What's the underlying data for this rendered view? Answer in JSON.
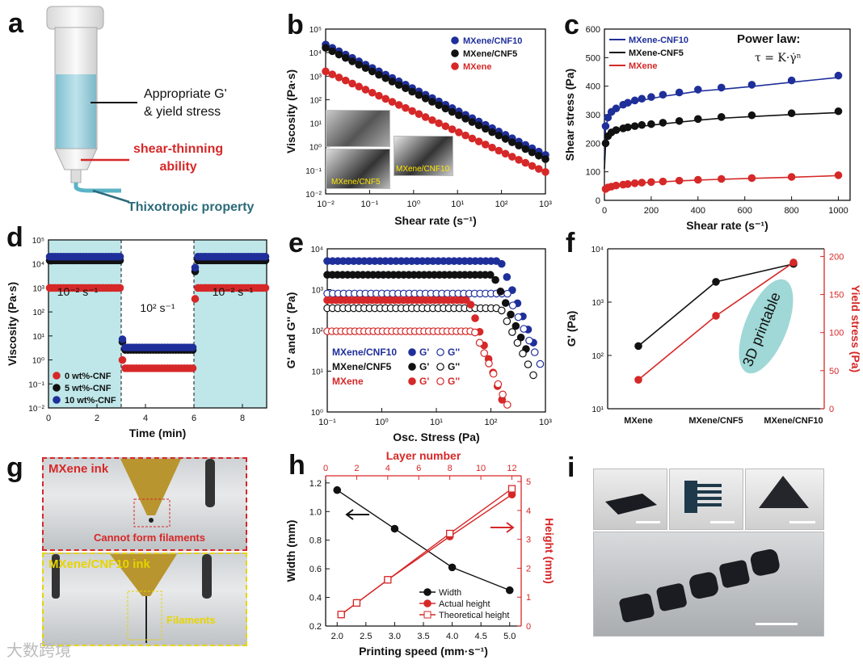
{
  "panel_labels": {
    "a": "a",
    "b": "b",
    "c": "c",
    "d": "d",
    "e": "e",
    "f": "f",
    "g": "g",
    "h": "h",
    "i": "i"
  },
  "schematic": {
    "gprime_label_line1": "Appropriate G'",
    "gprime_label_line2": "& yield stress",
    "shear_label_line1": "shear-thinning",
    "shear_label_line2": "ability",
    "thixo_label": "Thixotropic property"
  },
  "photos_g": {
    "top_title": "MXene ink",
    "top_caption": "Cannot form filaments",
    "bottom_title": "MXene/CNF10 ink",
    "bottom_caption": "Filaments"
  },
  "inset_b": {
    "label1": "MXene/CNF5",
    "label2": "MXene/CNF10"
  },
  "panel_c_annotation": {
    "title": "Power law:",
    "equation": "τ = K·γ̇ⁿ"
  },
  "panel_d_annotation": {
    "left": "10⁻² s⁻¹",
    "mid": "10² s⁻¹",
    "right": "10⁻² s⁻¹"
  },
  "panel_f_annotation": "3D printable",
  "panel_h_annotation": "",
  "watermark": "大数跨境",
  "colors": {
    "blue": "#1f2f9a",
    "black": "#111111",
    "red": "#d62828",
    "cyan": "#bfe7ea",
    "highlight": "#9fd8d6"
  },
  "chart_data": [
    {
      "id": "b",
      "type": "scatter",
      "title": "",
      "xlabel": "Shear rate (s⁻¹)",
      "ylabel": "Viscosity (Pa·s)",
      "xscale": "log",
      "yscale": "log",
      "xlim": [
        0.01,
        1000
      ],
      "ylim": [
        0.01,
        100000
      ],
      "x_ticks": [
        "10⁻²",
        "10⁻¹",
        "10⁰",
        "10¹",
        "10²",
        "10³"
      ],
      "y_ticks": [
        "10⁻²",
        "10⁻¹",
        "10⁰",
        "10¹",
        "10²",
        "10³",
        "10⁴",
        "10⁵"
      ],
      "legend": "top-right",
      "series": [
        {
          "name": "MXene/CNF10",
          "color": "blue",
          "x0": 0.01,
          "y0": 22000,
          "x1": 1000,
          "y1": 0.45
        },
        {
          "name": "MXene/CNF5",
          "color": "black",
          "x0": 0.01,
          "y0": 16000,
          "x1": 1000,
          "y1": 0.3
        },
        {
          "name": "MXene",
          "color": "red",
          "x0": 0.01,
          "y0": 1600,
          "x1": 1000,
          "y1": 0.085
        }
      ]
    },
    {
      "id": "c",
      "type": "scatter",
      "title": "",
      "xlabel": "Shear rate (s⁻¹)",
      "ylabel": "Shear stress (Pa)",
      "xlim": [
        0,
        1050
      ],
      "ylim": [
        0,
        600
      ],
      "x_ticks": [
        "0",
        "200",
        "400",
        "600",
        "800",
        "1000"
      ],
      "y_ticks": [
        "0",
        "100",
        "200",
        "300",
        "400",
        "500",
        "600"
      ],
      "legend": "top-left",
      "series": [
        {
          "name": "MXene-CNF10",
          "color": "blue",
          "x": [
            5,
            15,
            30,
            50,
            80,
            100,
            130,
            160,
            200,
            250,
            320,
            400,
            500,
            630,
            800,
            1000
          ],
          "y": [
            260,
            290,
            310,
            322,
            335,
            342,
            350,
            356,
            362,
            370,
            378,
            388,
            395,
            405,
            420,
            437
          ]
        },
        {
          "name": "MXene-CNF5",
          "color": "black",
          "x": [
            5,
            15,
            30,
            50,
            80,
            100,
            130,
            160,
            200,
            250,
            320,
            400,
            500,
            630,
            800,
            1000
          ],
          "y": [
            200,
            225,
            238,
            246,
            252,
            256,
            260,
            264,
            267,
            272,
            278,
            285,
            292,
            298,
            305,
            312
          ]
        },
        {
          "name": "MXene",
          "color": "red",
          "x": [
            5,
            15,
            30,
            50,
            80,
            100,
            130,
            160,
            200,
            250,
            320,
            400,
            500,
            630,
            800,
            1000
          ],
          "y": [
            40,
            45,
            48,
            52,
            55,
            57,
            60,
            62,
            64,
            66,
            69,
            72,
            75,
            78,
            82,
            88
          ]
        }
      ]
    },
    {
      "id": "d",
      "type": "scatter",
      "title": "",
      "xlabel": "Time (min)",
      "ylabel": "Viscosity (Pa·s)",
      "xlim": [
        0,
        9
      ],
      "ylim": [
        0.01,
        100000
      ],
      "yscale": "log",
      "x_ticks": [
        "0",
        "2",
        "4",
        "6",
        "8"
      ],
      "y_ticks": [
        "10⁻²",
        "10⁻¹",
        "10⁰",
        "10¹",
        "10²",
        "10³",
        "10⁴",
        "10⁵"
      ],
      "legend": "bottom-left",
      "series": [
        {
          "name": "0 wt%-CNF",
          "color": "red",
          "levels": [
            1000,
            0.45,
            1000
          ]
        },
        {
          "name": "5 wt%-CNF",
          "color": "black",
          "levels": [
            14000,
            2.6,
            14000
          ]
        },
        {
          "name": "10 wt%-CNF",
          "color": "blue",
          "levels": [
            20000,
            3.3,
            20000
          ]
        }
      ]
    },
    {
      "id": "e",
      "type": "scatter",
      "title": "",
      "xlabel": "Osc. Stress (Pa)",
      "ylabel": "G' and G'' (Pa)",
      "xscale": "log",
      "yscale": "log",
      "xlim": [
        0.1,
        1000
      ],
      "ylim": [
        1,
        10000
      ],
      "x_ticks": [
        "10⁻¹",
        "10⁰",
        "10¹",
        "10²",
        "10³"
      ],
      "y_ticks": [
        "10⁰",
        "10¹",
        "10²",
        "10³",
        "10⁴"
      ],
      "legend": "bottom-left",
      "series": [
        {
          "name": "MXene/CNF10 G'",
          "color": "blue",
          "filled": true,
          "plateau": 5000,
          "yield": 150,
          "end": 50
        },
        {
          "name": "MXene/CNF10 G''",
          "color": "blue",
          "filled": false,
          "plateau": 800,
          "yield": 200,
          "end": 15
        },
        {
          "name": "MXene/CNF5 G'",
          "color": "black",
          "filled": true,
          "plateau": 2300,
          "yield": 110,
          "end": 35
        },
        {
          "name": "MXene/CNF5 G''",
          "color": "black",
          "filled": false,
          "plateau": 350,
          "yield": 150,
          "end": 8
        },
        {
          "name": "MXene G'",
          "color": "red",
          "filled": true,
          "plateau": 550,
          "yield": 40,
          "end": 2
        },
        {
          "name": "MXene G''",
          "color": "red",
          "filled": false,
          "plateau": 95,
          "yield": 50,
          "end": 1.5
        }
      ],
      "legend_rows": [
        {
          "label": "MXene/CNF10",
          "color": "blue",
          "g1": "G'",
          "g2": "G''"
        },
        {
          "label": "MXene/CNF5",
          "color": "black",
          "g1": "G'",
          "g2": "G''"
        },
        {
          "label": "MXene",
          "color": "red",
          "g1": "G'",
          "g2": "G''"
        }
      ]
    },
    {
      "id": "f",
      "type": "line",
      "title": "",
      "categories": [
        "MXene",
        "MXene/CNF5",
        "MXene/CNF10"
      ],
      "ylabel": "G' (Pa)",
      "y2label": "Yield stress (Pa)",
      "yscale": "log",
      "ylim": [
        10,
        10000
      ],
      "y2lim": [
        0,
        210
      ],
      "y_ticks": [
        "10¹",
        "10²",
        "10³",
        "10⁴"
      ],
      "y2_ticks": [
        "0",
        "50",
        "100",
        "150",
        "200"
      ],
      "series": [
        {
          "name": "G'",
          "color": "black",
          "values": [
            150,
            2400,
            5200
          ]
        },
        {
          "name": "Yield stress",
          "color": "red",
          "values": [
            38,
            122,
            192
          ]
        }
      ]
    },
    {
      "id": "h",
      "type": "line",
      "title": "",
      "xlabel": "Printing speed (mm·s⁻¹)",
      "ylabel": "Width (mm)",
      "x2label": "Layer number",
      "y2label": "Height (mm)",
      "xlim": [
        1.8,
        5.2
      ],
      "ylim": [
        0.2,
        1.25
      ],
      "x2lim": [
        0,
        12.6
      ],
      "y2lim": [
        0,
        5.2
      ],
      "x_ticks": [
        "2.0",
        "2.5",
        "3.0",
        "3.5",
        "4.0",
        "4.5",
        "5.0"
      ],
      "y_ticks": [
        "0.2",
        "0.4",
        "0.6",
        "0.8",
        "1.0",
        "1.2"
      ],
      "x2_ticks": [
        "0",
        "2",
        "4",
        "6",
        "8",
        "10",
        "12"
      ],
      "y2_ticks": [
        "0",
        "1",
        "2",
        "3",
        "4",
        "5"
      ],
      "legend": "bottom-right",
      "series": [
        {
          "name": "Width",
          "color": "black",
          "axis": "x-y",
          "x": [
            2.0,
            3.0,
            4.0,
            5.0
          ],
          "y": [
            1.15,
            0.88,
            0.61,
            0.45
          ]
        },
        {
          "name": "Actual height",
          "color": "red",
          "axis": "x2-y2",
          "x": [
            1,
            2,
            4,
            8,
            12
          ],
          "y": [
            0.4,
            0.8,
            1.6,
            3.1,
            4.55
          ]
        },
        {
          "name": "Theoretical height",
          "color": "red",
          "axis": "x2-y2",
          "x": [
            1,
            2,
            4,
            8,
            12
          ],
          "y": [
            0.4,
            0.8,
            1.6,
            3.2,
            4.75
          ]
        }
      ]
    }
  ]
}
